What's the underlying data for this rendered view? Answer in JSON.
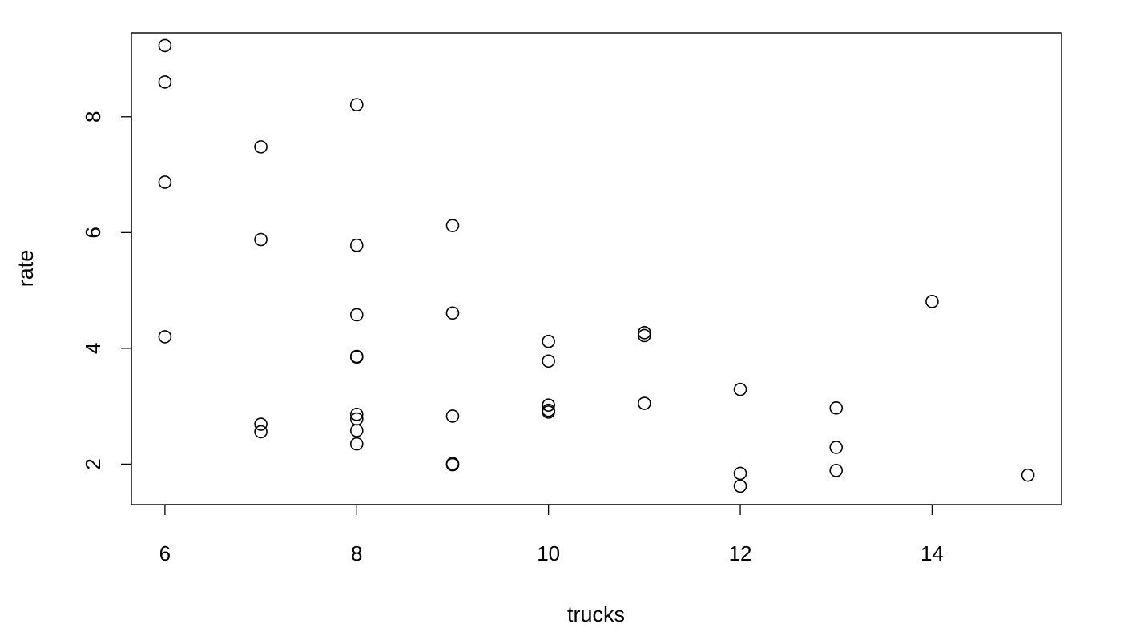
{
  "chart_data": {
    "type": "scatter",
    "title": "",
    "xlabel": "trucks",
    "ylabel": "rate",
    "xlim": [
      5.65,
      15.35
    ],
    "ylim": [
      1.3,
      9.45
    ],
    "xticks": [
      6,
      8,
      10,
      12,
      14
    ],
    "yticks": [
      2,
      4,
      6,
      8
    ],
    "grid": false,
    "legend": "none",
    "marker": "open-circle",
    "points": [
      {
        "x": 6,
        "y": 9.23
      },
      {
        "x": 6,
        "y": 8.6
      },
      {
        "x": 6,
        "y": 6.87
      },
      {
        "x": 6,
        "y": 4.2
      },
      {
        "x": 7,
        "y": 7.48
      },
      {
        "x": 7,
        "y": 5.88
      },
      {
        "x": 7,
        "y": 2.69
      },
      {
        "x": 7,
        "y": 2.56
      },
      {
        "x": 8,
        "y": 8.21
      },
      {
        "x": 8,
        "y": 5.78
      },
      {
        "x": 8,
        "y": 4.58
      },
      {
        "x": 8,
        "y": 3.86
      },
      {
        "x": 8,
        "y": 3.85
      },
      {
        "x": 8,
        "y": 2.86
      },
      {
        "x": 8,
        "y": 2.78
      },
      {
        "x": 8,
        "y": 2.58
      },
      {
        "x": 8,
        "y": 2.35
      },
      {
        "x": 9,
        "y": 6.12
      },
      {
        "x": 9,
        "y": 4.61
      },
      {
        "x": 9,
        "y": 2.83
      },
      {
        "x": 9,
        "y": 2.01
      },
      {
        "x": 9,
        "y": 1.99
      },
      {
        "x": 10,
        "y": 4.12
      },
      {
        "x": 10,
        "y": 3.78
      },
      {
        "x": 10,
        "y": 3.02
      },
      {
        "x": 10,
        "y": 2.93
      },
      {
        "x": 10,
        "y": 2.9
      },
      {
        "x": 11,
        "y": 4.27
      },
      {
        "x": 11,
        "y": 4.22
      },
      {
        "x": 11,
        "y": 3.05
      },
      {
        "x": 12,
        "y": 3.29
      },
      {
        "x": 12,
        "y": 1.84
      },
      {
        "x": 12,
        "y": 1.62
      },
      {
        "x": 13,
        "y": 2.97
      },
      {
        "x": 13,
        "y": 2.29
      },
      {
        "x": 13,
        "y": 1.89
      },
      {
        "x": 14,
        "y": 4.81
      },
      {
        "x": 15,
        "y": 1.81
      }
    ]
  }
}
